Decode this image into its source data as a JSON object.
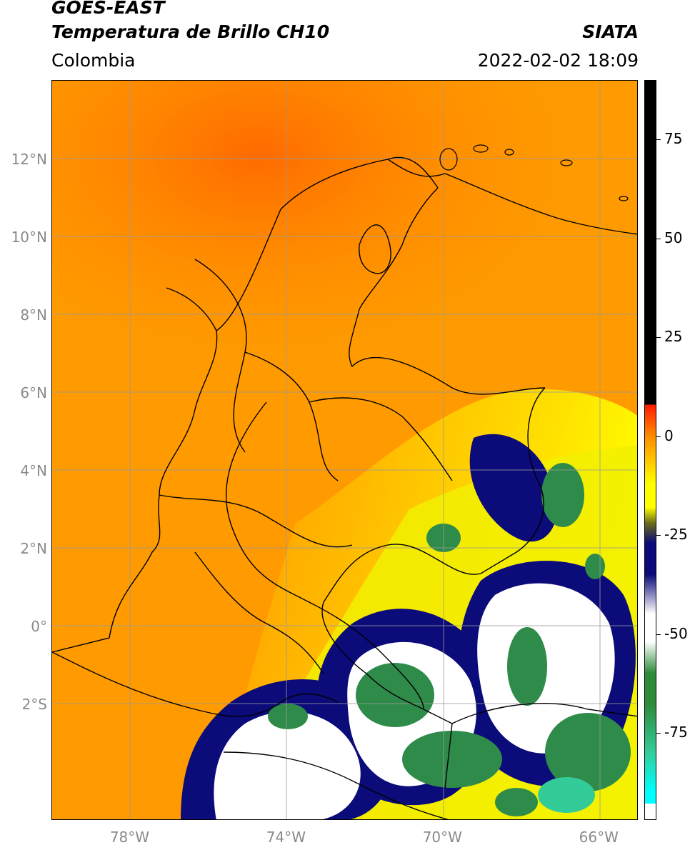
{
  "header": {
    "title_line1": "GOES-EAST",
    "title_line2": "Temperatura de Brillo CH10",
    "brand": "SIATA",
    "region": "Colombia",
    "datetime": "2022-02-02 18:09"
  },
  "map": {
    "lat_ticks": [
      {
        "label": "12°N",
        "value": 12
      },
      {
        "label": "10°N",
        "value": 10
      },
      {
        "label": "8°N",
        "value": 8
      },
      {
        "label": "6°N",
        "value": 6
      },
      {
        "label": "4°N",
        "value": 4
      },
      {
        "label": "2°N",
        "value": 2
      },
      {
        "label": "0°",
        "value": 0
      },
      {
        "label": "2°S",
        "value": -2
      }
    ],
    "lon_ticks": [
      {
        "label": "78°W",
        "value": -78
      },
      {
        "label": "74°W",
        "value": -74
      },
      {
        "label": "70°W",
        "value": -70
      },
      {
        "label": "66°W",
        "value": -66
      }
    ],
    "lat_range": [
      -4.95,
      14.05
    ],
    "lon_range": [
      -80,
      -65
    ]
  },
  "colorbar": {
    "ticks": [
      {
        "label": "75",
        "value": 75
      },
      {
        "label": "50",
        "value": 50
      },
      {
        "label": "25",
        "value": 25
      },
      {
        "label": "0",
        "value": 0
      },
      {
        "label": "-25",
        "value": -25
      },
      {
        "label": "-50",
        "value": -50
      },
      {
        "label": "-75",
        "value": -75
      }
    ],
    "range": [
      -97,
      90
    ],
    "colors": {
      "black": "#000000",
      "red": "#ff1a00",
      "orange": "#ff8c00",
      "yellow": "#ffff00",
      "olive": "#6b6b1a",
      "navy": "#0a0a7a",
      "white": "#ffffff",
      "green": "#2e8b3a",
      "teal": "#33cc99",
      "cyan": "#00ffff"
    }
  }
}
